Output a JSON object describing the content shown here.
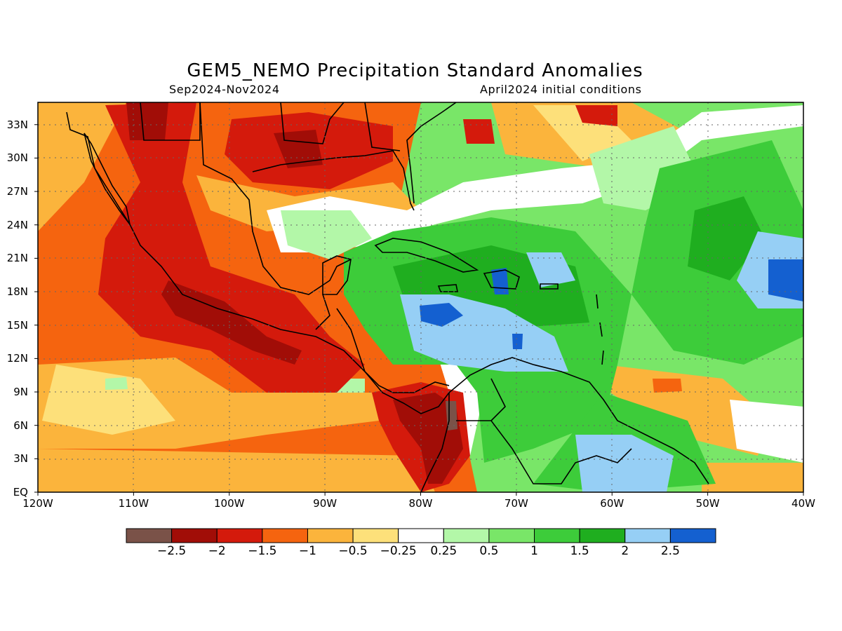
{
  "title": "GEM5_NEMO Precipitation Standard Anomalies",
  "period": "Sep2024-Nov2024",
  "init": "April2024 initial conditions",
  "map": {
    "lon_range": [
      -120,
      -40
    ],
    "lat_range": [
      0,
      35
    ],
    "x_ticks": [
      "120W",
      "110W",
      "100W",
      "90W",
      "80W",
      "70W",
      "60W",
      "50W",
      "40W"
    ],
    "y_ticks": [
      "EQ",
      "3N",
      "6N",
      "9N",
      "12N",
      "15N",
      "18N",
      "21N",
      "24N",
      "27N",
      "30N",
      "33N"
    ],
    "grid": "dotted"
  },
  "legend": {
    "colors": [
      "#7a5248",
      "#a10d07",
      "#d41a0c",
      "#f5640f",
      "#fbb43c",
      "#fde07a",
      "#ffffff",
      "#b3f7a8",
      "#79e668",
      "#3dcc3a",
      "#1fae1f",
      "#96cff5",
      "#1460d0"
    ],
    "labels": [
      "−2.5",
      "−2",
      "−1.5",
      "−1",
      "−0.5",
      "−0.25",
      "0.25",
      "0.5",
      "1",
      "1.5",
      "2",
      "2.5"
    ]
  }
}
